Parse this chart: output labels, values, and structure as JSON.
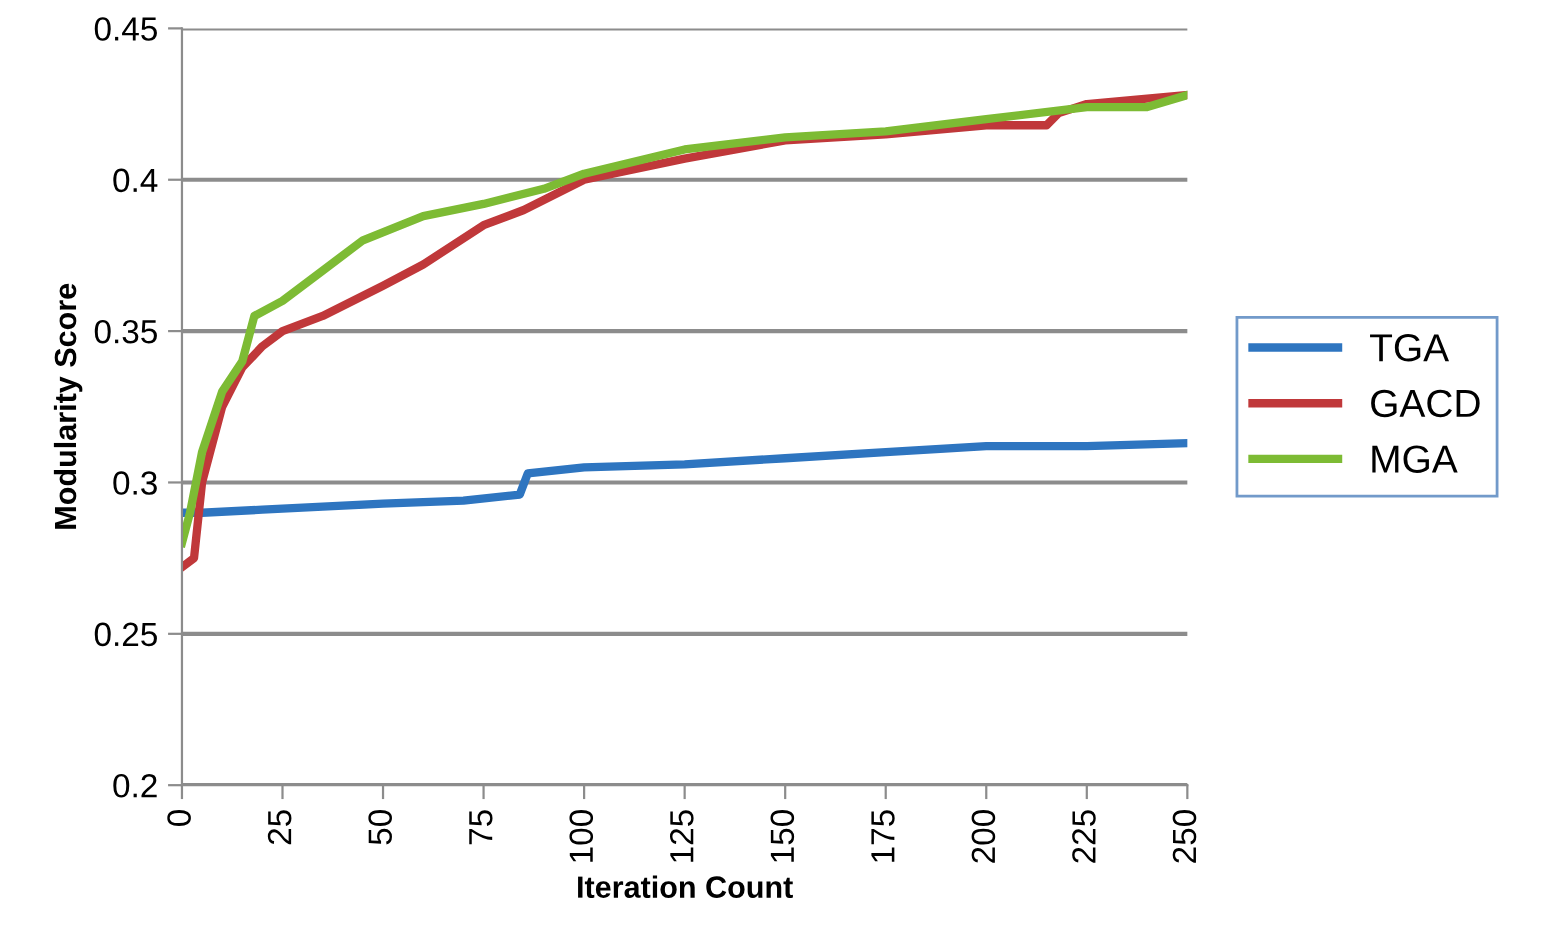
{
  "chart_data": {
    "type": "line",
    "xlabel": "Iteration Count",
    "ylabel": "Modularity Score",
    "xlim": [
      0,
      250
    ],
    "xticks": [
      0,
      25,
      50,
      75,
      100,
      125,
      150,
      175,
      200,
      225,
      250
    ],
    "ylim": [
      0.2,
      0.45
    ],
    "yticks": [
      0.2,
      0.25,
      0.3,
      0.35,
      0.4,
      0.45
    ],
    "grid": "y",
    "legend": "right",
    "line_style": "solid",
    "marker": "none",
    "series": [
      {
        "name": "TGA",
        "color": "#2e75c0",
        "x": [
          0,
          5,
          20,
          35,
          50,
          70,
          84,
          86,
          100,
          125,
          150,
          175,
          200,
          225,
          250
        ],
        "values": [
          0.29,
          0.29,
          0.291,
          0.292,
          0.293,
          0.294,
          0.296,
          0.303,
          0.305,
          0.306,
          0.308,
          0.31,
          0.312,
          0.312,
          0.313
        ]
      },
      {
        "name": "GACD",
        "color": "#c0383a",
        "x": [
          0,
          3,
          5,
          10,
          15,
          20,
          25,
          35,
          50,
          60,
          75,
          85,
          100,
          125,
          150,
          175,
          200,
          215,
          218,
          225,
          250
        ],
        "values": [
          0.272,
          0.275,
          0.3,
          0.325,
          0.338,
          0.345,
          0.35,
          0.355,
          0.365,
          0.372,
          0.385,
          0.39,
          0.4,
          0.407,
          0.413,
          0.415,
          0.418,
          0.418,
          0.422,
          0.425,
          0.428
        ]
      },
      {
        "name": "MGA",
        "color": "#7dbb34",
        "x": [
          0,
          2,
          5,
          10,
          15,
          18,
          25,
          35,
          45,
          60,
          75,
          90,
          100,
          125,
          150,
          175,
          200,
          225,
          240,
          250
        ],
        "values": [
          0.28,
          0.29,
          0.31,
          0.33,
          0.34,
          0.355,
          0.36,
          0.37,
          0.38,
          0.388,
          0.392,
          0.397,
          0.402,
          0.41,
          0.414,
          0.416,
          0.42,
          0.424,
          0.424,
          0.428
        ]
      }
    ]
  }
}
